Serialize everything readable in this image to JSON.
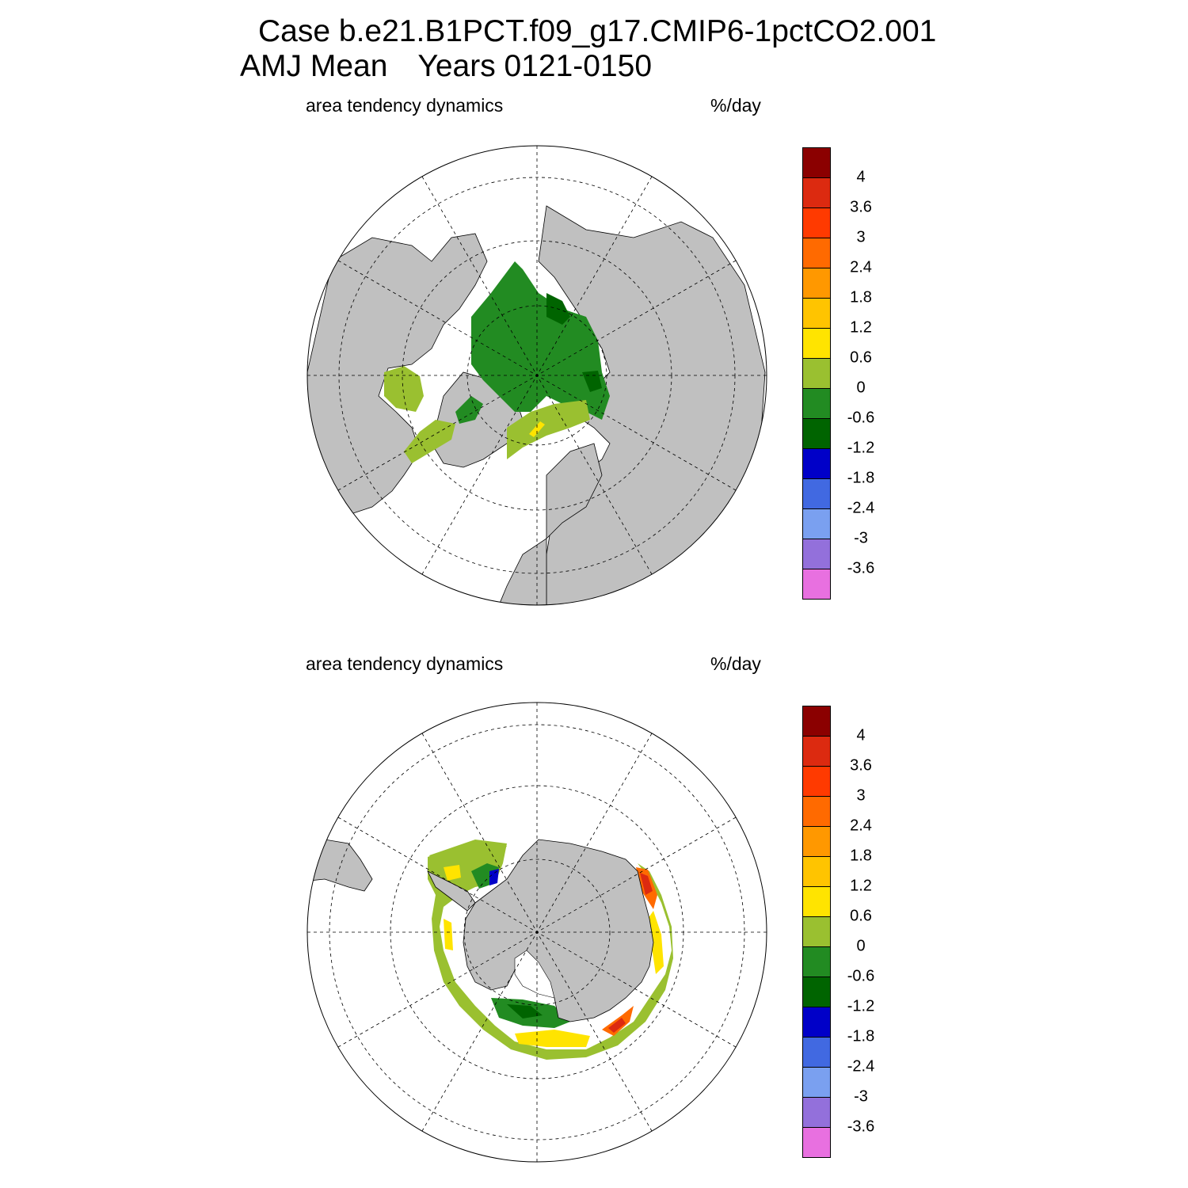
{
  "title": {
    "line1": "Case b.e21.B1PCT.f09_g17.CMIP6-1pctCO2.001",
    "line2_left": "AMJ Mean",
    "line2_right": "Years 0121-0150"
  },
  "panels": [
    {
      "hemisphere": "north",
      "left_label": "area tendency dynamics",
      "right_label": "%/day"
    },
    {
      "hemisphere": "south",
      "left_label": "area tendency dynamics",
      "right_label": "%/day"
    }
  ],
  "colorbar": {
    "units": "%/day",
    "levels": [
      "4",
      "3.6",
      "3",
      "2.4",
      "1.8",
      "1.2",
      "0.6",
      "0",
      "-0.6",
      "-1.2",
      "-1.8",
      "-2.4",
      "-3",
      "-3.6"
    ],
    "colors": [
      "#8b0000",
      "#dc2a10",
      "#ff3a00",
      "#ff6a00",
      "#ff9800",
      "#ffc400",
      "#ffe400",
      "#9ac030",
      "#228b22",
      "#006400",
      "#0000c8",
      "#4169e1",
      "#7aa0f0",
      "#9370db",
      "#e870e0"
    ]
  },
  "map_colors": {
    "land": "#c0c0c0",
    "ocean": "#ffffff"
  }
}
